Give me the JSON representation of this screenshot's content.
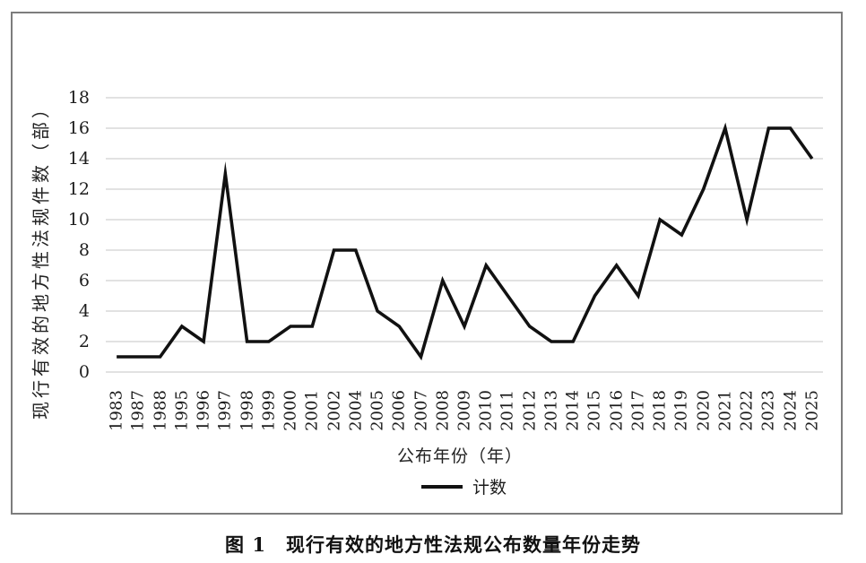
{
  "figure": {
    "caption": "图 1　现行有效的地方性法规公布数量年份走势"
  },
  "chart_data": {
    "type": "line",
    "title": "",
    "categories": [
      "1983",
      "1987",
      "1988",
      "1995",
      "1996",
      "1997",
      "1998",
      "1999",
      "2000",
      "2001",
      "2002",
      "2004",
      "2005",
      "2006",
      "2007",
      "2008",
      "2009",
      "2010",
      "2011",
      "2012",
      "2013",
      "2014",
      "2015",
      "2016",
      "2017",
      "2018",
      "2019",
      "2020",
      "2021",
      "2022",
      "2023",
      "2024",
      "2025"
    ],
    "series": [
      {
        "name": "计数",
        "values": [
          1,
          1,
          1,
          3,
          2,
          13,
          2,
          2,
          3,
          3,
          8,
          8,
          4,
          3,
          1,
          6,
          3,
          7,
          5,
          3,
          2,
          2,
          5,
          7,
          5,
          10,
          9,
          12,
          16,
          10,
          16,
          16,
          14
        ]
      }
    ],
    "xlabel": "公布年份（年）",
    "ylabel": "现行有效的地方性法规件数（部）",
    "ylim": [
      0,
      18
    ],
    "ytick_step": 2,
    "grid": true,
    "legend_position": "bottom",
    "line_color": "#111111",
    "gridline_color": "#c6c6c6"
  }
}
